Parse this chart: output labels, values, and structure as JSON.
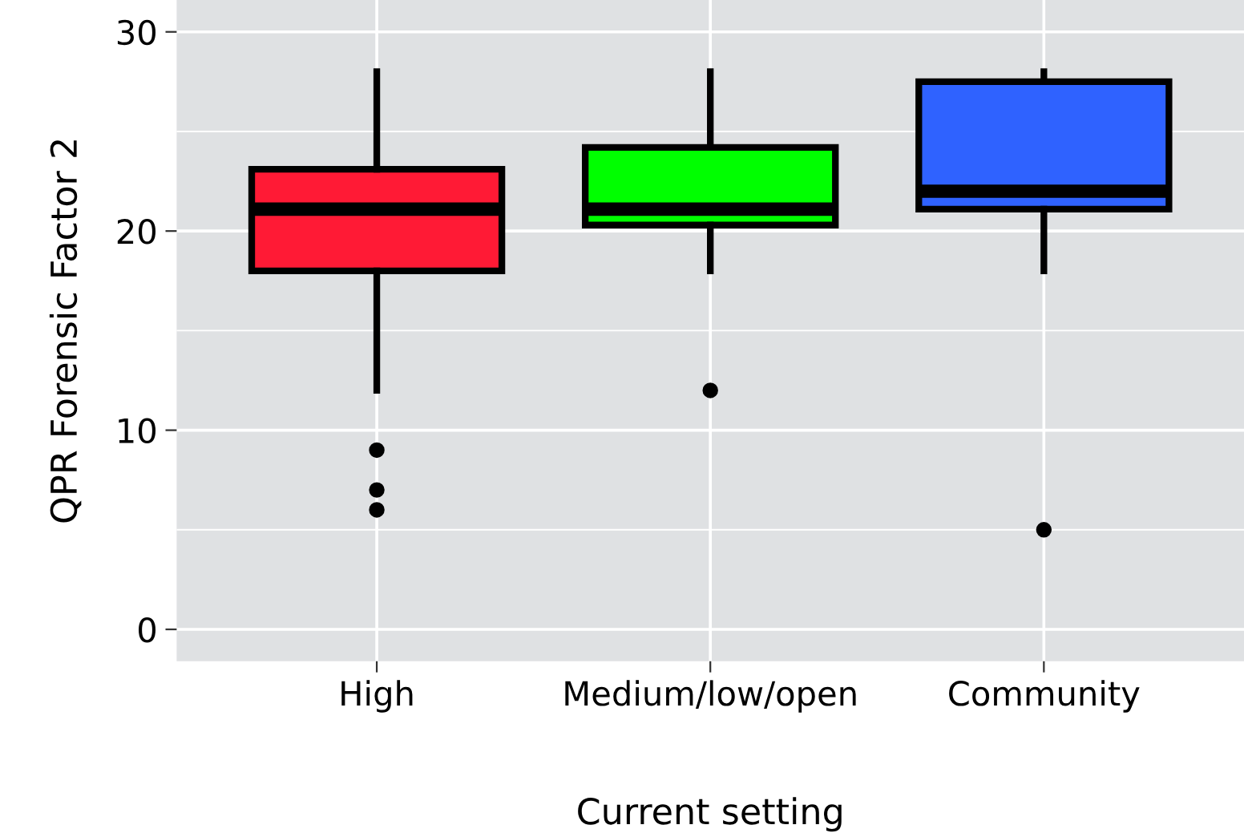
{
  "chart_data": {
    "type": "box",
    "xlabel": "Current setting",
    "ylabel": "QPR Forensic Factor 2",
    "categories": [
      "High",
      "Medium/low/open",
      "Community"
    ],
    "colors": [
      "#ff1a35",
      "#00ff00",
      "#2f62ff"
    ],
    "boxes": [
      {
        "low": 12,
        "q1": 18,
        "median": 21.1,
        "q3": 23.1,
        "high": 28,
        "outliers": [
          9,
          7,
          6
        ]
      },
      {
        "low": 18,
        "q1": 20.3,
        "median": 21.1,
        "q3": 24.2,
        "high": 28,
        "outliers": [
          12
        ]
      },
      {
        "low": 18,
        "q1": 21.1,
        "median": 22,
        "q3": 27.5,
        "high": 28,
        "outliers": [
          5
        ]
      }
    ],
    "ylim": [
      -1.6,
      31.6
    ],
    "yticks": [
      0,
      10,
      20,
      30
    ],
    "grid": true,
    "legend": false
  }
}
